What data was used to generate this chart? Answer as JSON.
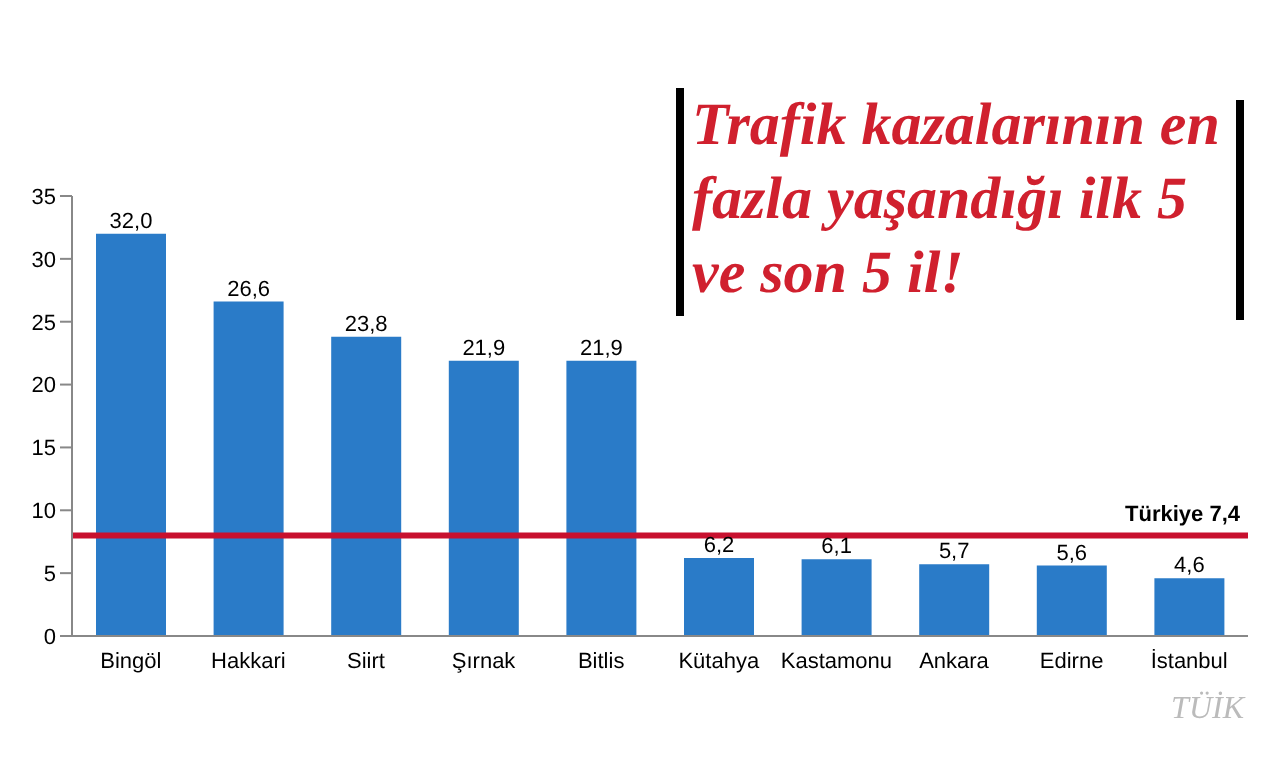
{
  "chart_data": {
    "type": "bar",
    "title": "Trafik kazalarının en fazla yaşandığı ilk 5 ve son 5 il!",
    "categories": [
      "Bingöl",
      "Hakkari",
      "Siirt",
      "Şırnak",
      "Bitlis",
      "Kütahya",
      "Kastamonu",
      "Ankara",
      "Edirne",
      "İstanbul"
    ],
    "values": [
      32.0,
      26.6,
      23.8,
      21.9,
      21.9,
      6.2,
      6.1,
      5.7,
      5.6,
      4.6
    ],
    "color": "#2a7bc8",
    "value_labels": [
      "32,0",
      "26,6",
      "23,8",
      "21,9",
      "21,9",
      "6,2",
      "6,1",
      "5,7",
      "5,6",
      "4,6"
    ],
    "ylim": [
      0,
      35
    ],
    "yticks": [
      0,
      5,
      10,
      15,
      20,
      25,
      30,
      35
    ],
    "grid": false,
    "legend": false,
    "ref_lines": [
      {
        "axis": "y",
        "value": 8,
        "label": "Türkiye 7,4",
        "color": "#c8102e"
      }
    ],
    "annotations": [
      "TÜİK"
    ]
  }
}
